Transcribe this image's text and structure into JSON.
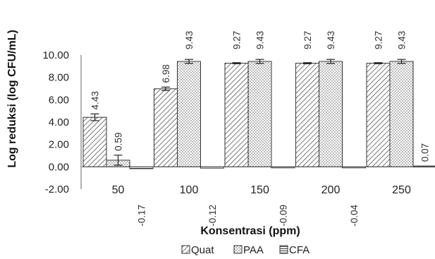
{
  "chart_data": {
    "type": "bar",
    "xlabel": "Konsentrasi (ppm)",
    "ylabel": "Log reduksi (log CFU/mL)",
    "ylim": [
      -2,
      10
    ],
    "yticks": [
      "-2.00",
      "0.00",
      "2.00",
      "4.00",
      "6.00",
      "8.00",
      "10.00"
    ],
    "categories": [
      "50",
      "100",
      "150",
      "200",
      "250"
    ],
    "grid": false,
    "legend_position": "bottom",
    "series": [
      {
        "name": "Quat",
        "pattern": "diagonal-hatch",
        "values": [
          4.43,
          6.98,
          9.27,
          9.27,
          9.27
        ],
        "labels": [
          "4.43",
          "6.98",
          "9.27",
          "9.27",
          "9.27"
        ],
        "errors": [
          0.3,
          0.15,
          0.05,
          0.05,
          0.05
        ]
      },
      {
        "name": "PAA",
        "pattern": "dots",
        "values": [
          0.59,
          9.43,
          9.43,
          9.43,
          9.43
        ],
        "labels": [
          "0.59",
          "9.43",
          "9.43",
          "9.43",
          "9.43"
        ],
        "errors": [
          0.45,
          0.18,
          0.18,
          0.18,
          0.18
        ]
      },
      {
        "name": "CFA",
        "pattern": "horizontal-lines",
        "values": [
          -0.17,
          -0.12,
          -0.09,
          -0.04,
          0.07
        ],
        "labels": [
          "-0.17",
          "-0.12",
          "-0.09",
          "-0.04",
          "0.07"
        ],
        "errors": [
          0,
          0,
          0,
          0,
          0
        ]
      }
    ]
  },
  "legend": {
    "quat": "Quat",
    "paa": "PAA",
    "cfa": "CFA"
  }
}
